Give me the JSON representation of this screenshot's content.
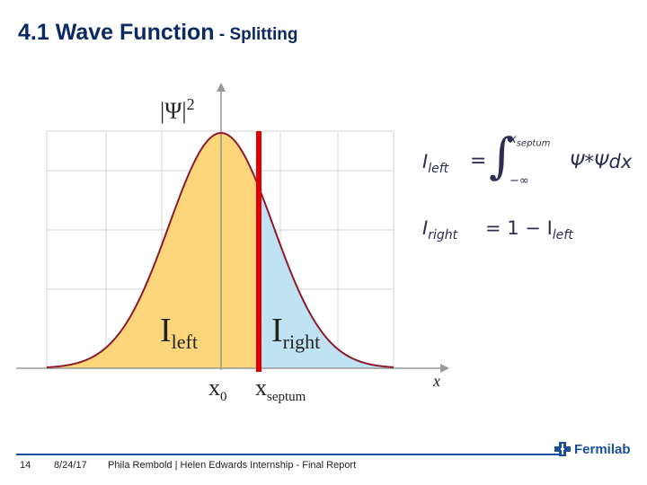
{
  "slide": {
    "title_main": "4.1 Wave Function",
    "title_sub": " - Splitting"
  },
  "plot": {
    "y_label_base": "|Ψ|",
    "y_label_exp": "2",
    "x_label": "x",
    "left_label_base": "I",
    "left_label_sub": "left",
    "right_label_base": "I",
    "right_label_sub": "right",
    "x0_base": "x",
    "x0_sub": "0",
    "septum_base": "x",
    "septum_sub": "septum",
    "colors": {
      "left_fill": "#fdd57a",
      "right_fill": "#bfe3f2",
      "curve": "#8b1a2b",
      "septum": "#e00000"
    }
  },
  "equations": {
    "left_lhs_base": "I",
    "left_lhs_sub": "left",
    "eq_sign": "=",
    "integral_upper": "x",
    "integral_upper_sub": "septum",
    "integral_lower": "−∞",
    "integrand": "Ψ*Ψdx",
    "right_lhs_base": "I",
    "right_lhs_sub": "right",
    "right_rhs": "= 1 − I",
    "right_rhs_sub": "left"
  },
  "footer": {
    "page_number": "14",
    "date": "8/24/17",
    "credit": "Phila Rembold | Helen Edwards Internship - Final Report",
    "logo_text": "Fermilab"
  }
}
